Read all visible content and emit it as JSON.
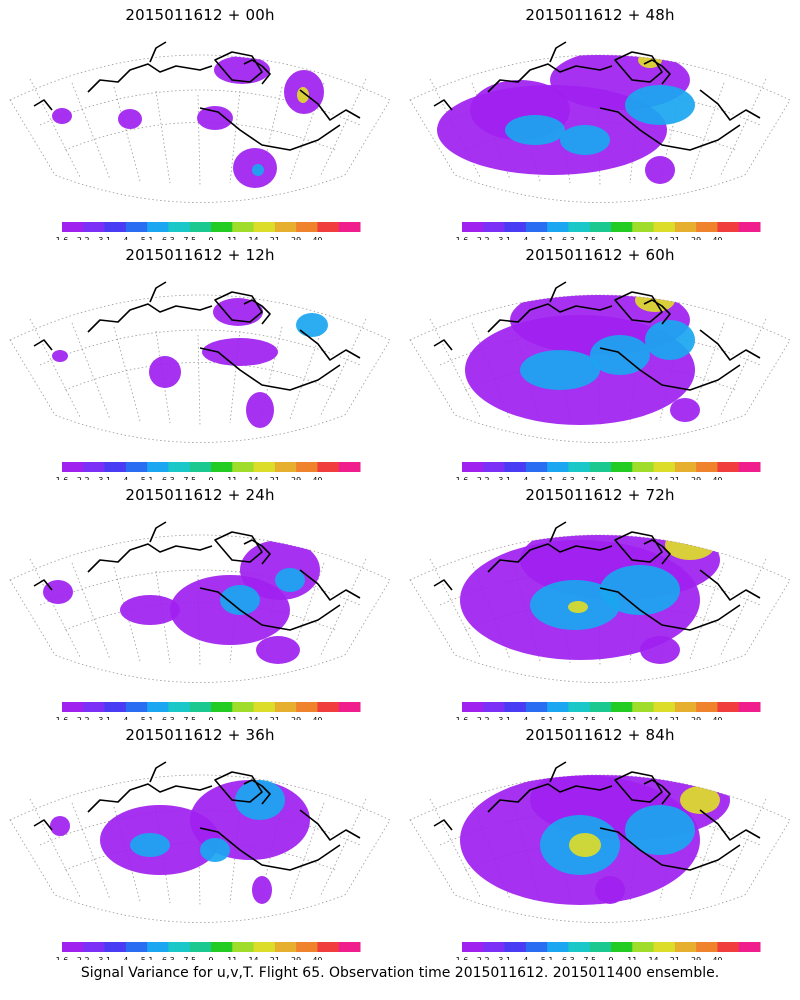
{
  "caption": "Signal Variance for u,v,T. Flight 65. Observation time 2015011612. 2015011400 ensemble.",
  "panels": [
    {
      "title": "2015011612 + 00h"
    },
    {
      "title": "2015011612 + 48h"
    },
    {
      "title": "2015011612 + 12h"
    },
    {
      "title": "2015011612 + 60h"
    },
    {
      "title": "2015011612 + 24h"
    },
    {
      "title": "2015011612 + 72h"
    },
    {
      "title": "2015011612 + 36h"
    },
    {
      "title": "2015011612 + 84h"
    }
  ],
  "colorbar": {
    "labels": [
      "1.6",
      "2.2",
      "3.1",
      "4",
      "5.1",
      "6.3",
      "7.5",
      "9",
      "11",
      "14",
      "21",
      "29",
      "40"
    ],
    "colors": [
      "#a020f0",
      "#7b2ff7",
      "#4a3cf5",
      "#2a6cf2",
      "#1aa6f0",
      "#1ac8c8",
      "#1ac890",
      "#22cc22",
      "#a0dc2a",
      "#dcdc2a",
      "#e6af2d",
      "#f0822d",
      "#f03c3c",
      "#f01e8c"
    ]
  },
  "colors": {
    "variance_low": "#a020f0",
    "variance_mid": "#1aa6f0",
    "variance_high": "#dcdc2a",
    "coastline": "#000000",
    "grid": "#9a9a9a"
  }
}
